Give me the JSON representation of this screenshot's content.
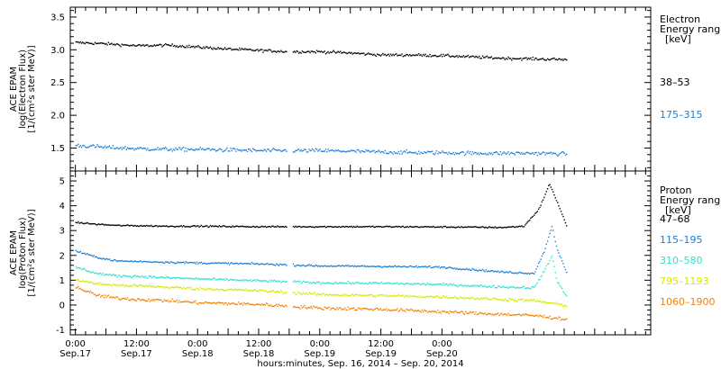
{
  "chart_data": [
    {
      "type": "scatter",
      "panel": "electron",
      "ylabel": [
        "ACE EPAM",
        "log(Electron Flux)",
        "[1/(cm²s ster MeV)]"
      ],
      "ylim": [
        1.15,
        3.65
      ],
      "yticks": [
        1.5,
        2.0,
        2.5,
        3.0,
        3.5
      ],
      "ytick_labels": [
        "1.5",
        "2.0",
        "2.5",
        "3.0",
        "3.5"
      ],
      "legend": {
        "title": [
          "Electron",
          "Energy ranges",
          "[keV]"
        ],
        "entries": [
          {
            "label": "38–53",
            "color": "#000000"
          },
          {
            "label": "175–315",
            "color": "#1a80d9"
          }
        ]
      },
      "series": [
        {
          "name": "38–53",
          "color": "#000000",
          "x": [
            0,
            6,
            12,
            18,
            24,
            30,
            36,
            42,
            48,
            54,
            60,
            66,
            72,
            78,
            84,
            90,
            96.5
          ],
          "y": [
            3.12,
            3.1,
            3.07,
            3.08,
            3.05,
            3.02,
            3.0,
            2.98,
            2.98,
            2.96,
            2.93,
            2.93,
            2.92,
            2.9,
            2.88,
            2.87,
            2.86
          ]
        },
        {
          "name": "175–315",
          "color": "#1a80d9",
          "x": [
            0,
            6,
            12,
            18,
            24,
            30,
            36,
            42,
            48,
            54,
            60,
            66,
            72,
            78,
            84,
            90,
            96.5
          ],
          "y": [
            1.55,
            1.52,
            1.5,
            1.49,
            1.49,
            1.48,
            1.47,
            1.47,
            1.47,
            1.46,
            1.45,
            1.44,
            1.44,
            1.43,
            1.43,
            1.43,
            1.42
          ]
        }
      ]
    },
    {
      "type": "scatter",
      "panel": "proton",
      "ylabel": [
        "ACE EPAM",
        "log(Proton Flux)",
        "[1/(cm²s ster MeV)]"
      ],
      "ylim": [
        -1.2,
        5.4
      ],
      "yticks": [
        -1,
        0,
        1,
        2,
        3,
        4,
        5
      ],
      "ytick_labels": [
        "-1",
        "0",
        "1",
        "2",
        "3",
        "4",
        "5"
      ],
      "legend": {
        "title": [
          "Proton",
          "Energy ranges",
          "[keV]"
        ],
        "entries": [
          {
            "label": "47–68",
            "color": "#000000"
          },
          {
            "label": "115–195",
            "color": "#1a80d9"
          },
          {
            "label": "310–580",
            "color": "#33e0d0"
          },
          {
            "label": "795–1193",
            "color": "#d8e800"
          },
          {
            "label": "1060–1900",
            "color": "#f0820a"
          }
        ]
      },
      "series": [
        {
          "name": "47–68",
          "color": "#000000",
          "x": [
            0,
            4,
            8,
            12,
            18,
            24,
            36,
            48,
            60,
            72,
            84,
            88,
            91,
            93,
            94.5,
            96.5
          ],
          "y": [
            3.35,
            3.28,
            3.23,
            3.22,
            3.2,
            3.2,
            3.18,
            3.18,
            3.18,
            3.17,
            3.15,
            3.2,
            3.9,
            4.9,
            4.2,
            3.15
          ]
        },
        {
          "name": "115–195",
          "color": "#1a80d9",
          "x": [
            0,
            4,
            8,
            12,
            18,
            24,
            36,
            48,
            60,
            72,
            84,
            90,
            92,
            93.5,
            94.5,
            96.5
          ],
          "y": [
            2.2,
            1.95,
            1.8,
            1.78,
            1.75,
            1.72,
            1.68,
            1.6,
            1.58,
            1.55,
            1.35,
            1.3,
            2.2,
            3.2,
            2.3,
            1.25
          ]
        },
        {
          "name": "310–580",
          "color": "#33e0d0",
          "x": [
            0,
            4,
            8,
            12,
            18,
            24,
            36,
            48,
            60,
            72,
            84,
            90,
            92,
            93.5,
            94.5,
            96.5
          ],
          "y": [
            1.55,
            1.3,
            1.2,
            1.18,
            1.12,
            1.08,
            1.0,
            0.92,
            0.9,
            0.85,
            0.75,
            0.72,
            1.4,
            2.0,
            1.0,
            0.3
          ]
        },
        {
          "name": "795–1193",
          "color": "#d8e800",
          "x": [
            0,
            4,
            8,
            12,
            18,
            24,
            36,
            48,
            60,
            72,
            84,
            90,
            96.5
          ],
          "y": [
            1.05,
            0.88,
            0.82,
            0.8,
            0.74,
            0.68,
            0.6,
            0.45,
            0.4,
            0.35,
            0.25,
            0.2,
            0.0
          ]
        },
        {
          "name": "1060–1900",
          "color": "#f0820a",
          "x": [
            0,
            4,
            8,
            12,
            18,
            24,
            36,
            48,
            60,
            72,
            84,
            90,
            96.5
          ],
          "y": [
            0.75,
            0.42,
            0.3,
            0.25,
            0.2,
            0.12,
            0.05,
            -0.1,
            -0.15,
            -0.25,
            -0.35,
            -0.4,
            -0.55
          ]
        }
      ]
    }
  ],
  "xaxis": {
    "label": "hours:minutes, Sep. 16, 2014 – Sep. 20, 2014",
    "xlim": [
      -1,
      113
    ],
    "ticks": [
      {
        "x": 0,
        "time": "0:00",
        "date": "Sep.17"
      },
      {
        "x": 12,
        "time": "12:00",
        "date": "Sep.17"
      },
      {
        "x": 24,
        "time": "0:00",
        "date": "Sep.18"
      },
      {
        "x": 36,
        "time": "12:00",
        "date": "Sep.18"
      },
      {
        "x": 48,
        "time": "0:00",
        "date": "Sep.19"
      },
      {
        "x": 60,
        "time": "12:00",
        "date": "Sep.19"
      },
      {
        "x": 72,
        "time": "0:00",
        "date": "Sep.20"
      }
    ],
    "data_gaps": [
      [
        41.5,
        42.5
      ]
    ]
  }
}
